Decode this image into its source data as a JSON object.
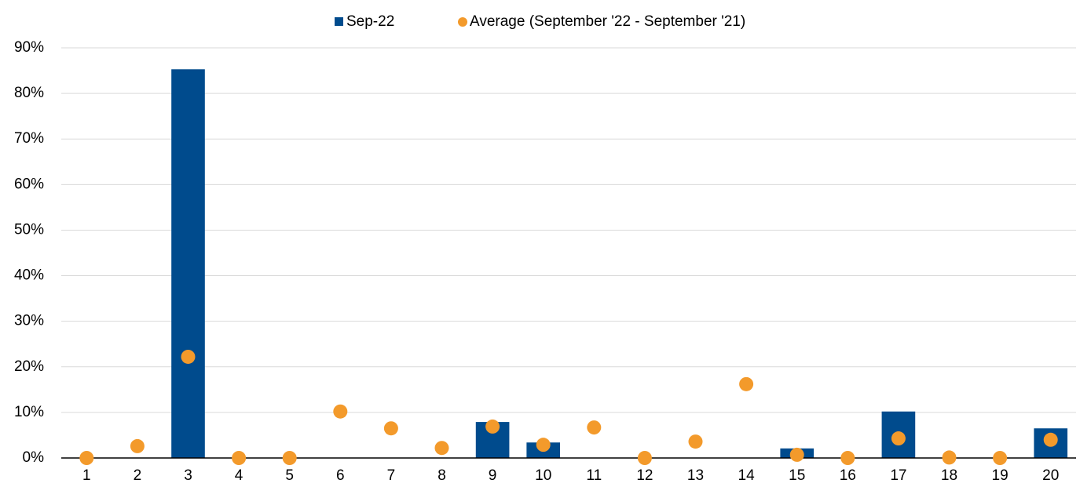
{
  "chart_data": {
    "type": "bar",
    "categories": [
      "1",
      "2",
      "3",
      "4",
      "5",
      "6",
      "7",
      "8",
      "9",
      "10",
      "11",
      "12",
      "13",
      "14",
      "15",
      "16",
      "17",
      "18",
      "19",
      "20"
    ],
    "series": [
      {
        "name": "Sep-22",
        "color": "#004b8d",
        "type": "bar",
        "values": [
          0,
          0,
          85.3,
          0,
          0,
          0,
          0,
          0,
          7.9,
          3.4,
          0,
          0,
          0,
          0,
          2.1,
          0,
          10.2,
          0,
          0,
          6.5
        ]
      },
      {
        "name": "Average (September '22 - September '21)",
        "color": "#f39a2b",
        "type": "scatter",
        "values": [
          0,
          2.6,
          22.2,
          0,
          0,
          10.2,
          6.5,
          2.2,
          6.9,
          2.9,
          6.7,
          0,
          3.6,
          16.2,
          0.7,
          0,
          4.3,
          0.1,
          0,
          4.0
        ]
      }
    ],
    "ylim": [
      0,
      90
    ],
    "yticks": [
      {
        "value": 0,
        "label": "0%"
      },
      {
        "value": 10,
        "label": "10%"
      },
      {
        "value": 20,
        "label": "20%"
      },
      {
        "value": 30,
        "label": "30%"
      },
      {
        "value": 40,
        "label": "40%"
      },
      {
        "value": 50,
        "label": "50%"
      },
      {
        "value": 60,
        "label": "60%"
      },
      {
        "value": 70,
        "label": "70%"
      },
      {
        "value": 80,
        "label": "80%"
      },
      {
        "value": 90,
        "label": "90%"
      }
    ],
    "grid": true,
    "legend": "top"
  }
}
